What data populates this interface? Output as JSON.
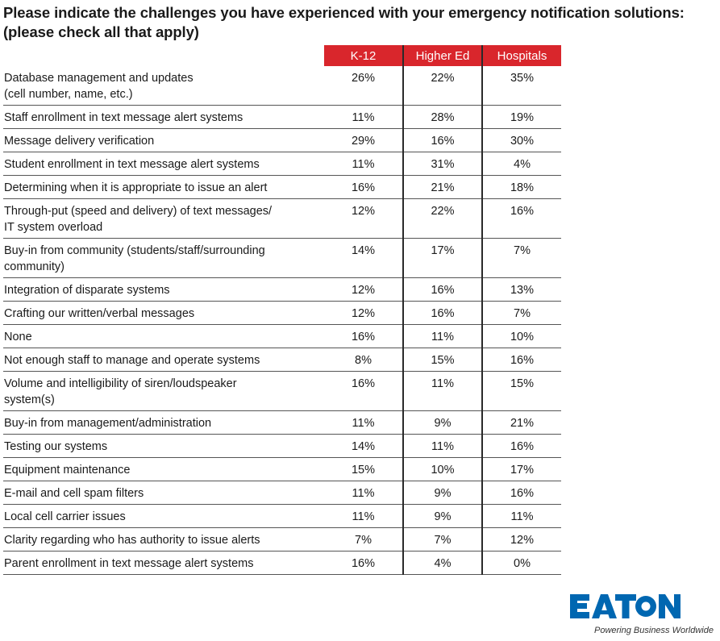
{
  "title": {
    "line1": "Please indicate the challenges you have experienced with your emergency notification solutions:",
    "line2": "(please check all that apply)"
  },
  "colors": {
    "header_bg": "#d9262c",
    "header_text": "#ffffff",
    "logo_blue": "#0067b1"
  },
  "chart_data": {
    "type": "table",
    "columns": [
      "K-12",
      "Higher Ed",
      "Hospitals"
    ],
    "rows": [
      {
        "label": [
          "Database management and updates",
          "(cell number, name, etc.)"
        ],
        "values": [
          "26%",
          "22%",
          "35%"
        ]
      },
      {
        "label": [
          "Staff enrollment in text message alert systems"
        ],
        "values": [
          "11%",
          "28%",
          "19%"
        ]
      },
      {
        "label": [
          "Message delivery verification"
        ],
        "values": [
          "29%",
          "16%",
          "30%"
        ]
      },
      {
        "label": [
          "Student enrollment in text message alert systems"
        ],
        "values": [
          "11%",
          "31%",
          "4%"
        ]
      },
      {
        "label": [
          "Determining when it is appropriate to issue an alert"
        ],
        "values": [
          "16%",
          "21%",
          "18%"
        ]
      },
      {
        "label": [
          "Through-put (speed and delivery) of text messages/",
          "IT system overload"
        ],
        "values": [
          "12%",
          "22%",
          "16%"
        ]
      },
      {
        "label": [
          "Buy-in from community (students/staff/surrounding",
          "community)"
        ],
        "values": [
          "14%",
          "17%",
          "7%"
        ]
      },
      {
        "label": [
          "Integration of disparate systems"
        ],
        "values": [
          "12%",
          "16%",
          "13%"
        ]
      },
      {
        "label": [
          "Crafting our written/verbal messages"
        ],
        "values": [
          "12%",
          "16%",
          "7%"
        ]
      },
      {
        "label": [
          "None"
        ],
        "values": [
          "16%",
          "11%",
          "10%"
        ]
      },
      {
        "label": [
          "Not enough staff to manage and operate systems"
        ],
        "values": [
          "8%",
          "15%",
          "16%"
        ]
      },
      {
        "label": [
          "Volume and intelligibility of siren/loudspeaker",
          "system(s)"
        ],
        "values": [
          "16%",
          "11%",
          "15%"
        ]
      },
      {
        "label": [
          "Buy-in from management/administration"
        ],
        "values": [
          "11%",
          "9%",
          "21%"
        ]
      },
      {
        "label": [
          "Testing our systems"
        ],
        "values": [
          "14%",
          "11%",
          "16%"
        ]
      },
      {
        "label": [
          "Equipment maintenance"
        ],
        "values": [
          "15%",
          "10%",
          "17%"
        ]
      },
      {
        "label": [
          "E-mail and cell spam filters"
        ],
        "values": [
          "11%",
          "9%",
          "16%"
        ]
      },
      {
        "label": [
          "Local cell carrier issues"
        ],
        "values": [
          "11%",
          "9%",
          "11%"
        ]
      },
      {
        "label": [
          "Clarity regarding who has authority to issue alerts"
        ],
        "values": [
          "7%",
          "7%",
          "12%"
        ]
      },
      {
        "label": [
          "Parent enrollment in text message alert systems"
        ],
        "values": [
          "16%",
          "4%",
          "0%"
        ]
      }
    ]
  },
  "logo": {
    "wordmark": "EATON",
    "tagline": "Powering Business Worldwide"
  }
}
